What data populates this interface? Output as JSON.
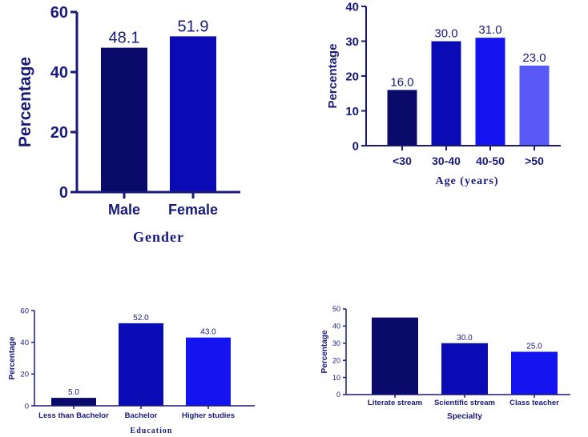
{
  "axis_color": "#1a1a7a",
  "chart_data": [
    {
      "type": "bar",
      "xlabel": "Gender",
      "ylabel": "Percentage",
      "categories": [
        "Male",
        "Female"
      ],
      "values": [
        48.1,
        51.9
      ],
      "value_labels": [
        "48.1",
        "51.9"
      ],
      "ylim": [
        0,
        60
      ],
      "yticks": [
        "0",
        "20",
        "40",
        "60"
      ],
      "colors": [
        "#0a0a6b",
        "#0b0bb5"
      ],
      "grid": false
    },
    {
      "type": "bar",
      "xlabel": "Age (years)",
      "ylabel": "Percentage",
      "categories": [
        "<30",
        "30-40",
        "40-50",
        ">50"
      ],
      "values": [
        16.0,
        30.0,
        31.0,
        23.0
      ],
      "value_labels": [
        "16.0",
        "30.0",
        "31.0",
        "23.0"
      ],
      "ylim": [
        0,
        40
      ],
      "yticks": [
        "0",
        "10",
        "20",
        "30",
        "40"
      ],
      "colors": [
        "#0a0a6b",
        "#0b0bb5",
        "#1414f0",
        "#5959f5"
      ],
      "grid": false
    },
    {
      "type": "bar",
      "xlabel": "Education",
      "ylabel": "Percentage",
      "categories": [
        "Less than  Bachelor",
        "Bachelor",
        "Higher studies"
      ],
      "values": [
        5.0,
        52.0,
        43.0
      ],
      "value_labels": [
        "5.0",
        "52.0",
        "43.0"
      ],
      "ylim": [
        0,
        60
      ],
      "yticks": [
        "0",
        "20",
        "40",
        "60"
      ],
      "colors": [
        "#0a0a6b",
        "#0b0bb5",
        "#1414f0"
      ],
      "grid": false
    },
    {
      "type": "bar",
      "xlabel": "Specialty",
      "ylabel": "Percentage",
      "categories": [
        "Literate stream",
        "Scientific stream",
        "Class teacher"
      ],
      "values": [
        45.0,
        30.0,
        25.0
      ],
      "value_labels": [
        "",
        "30.0",
        "25.0"
      ],
      "ylim": [
        0,
        50
      ],
      "yticks": [
        "0",
        "10",
        "20",
        "30",
        "40",
        "50"
      ],
      "colors": [
        "#0a0a6b",
        "#0b0bb5",
        "#1414f0"
      ],
      "grid": false
    }
  ]
}
